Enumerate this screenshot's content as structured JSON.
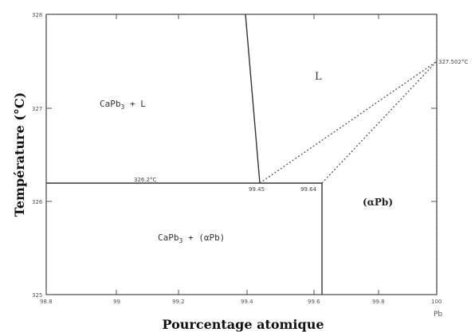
{
  "axes": {
    "y_title": "Température (°C)",
    "x_title": "Pourcentage atomique",
    "x_element": "Pb",
    "x_ticks": [
      "98.8",
      "99",
      "99.2",
      "99.4",
      "99.6",
      "99.8",
      "100"
    ],
    "y_ticks": [
      "328",
      "327",
      "326",
      "325"
    ]
  },
  "regions": {
    "liquid": "L",
    "capb3_liquid_main": "CaPb",
    "capb3_liquid_sub": "3",
    "capb3_liquid_tail": " + L",
    "capb3_apb_main": "CaPb",
    "capb3_apb_sub": "3",
    "capb3_apb_tail": " + (αPb)",
    "apb": "(αPb)"
  },
  "annotations": {
    "eutectic_temp": "326.2°C",
    "comp_a": "99.45",
    "comp_b": "99.64",
    "pb_melting": "327.502°C"
  }
}
